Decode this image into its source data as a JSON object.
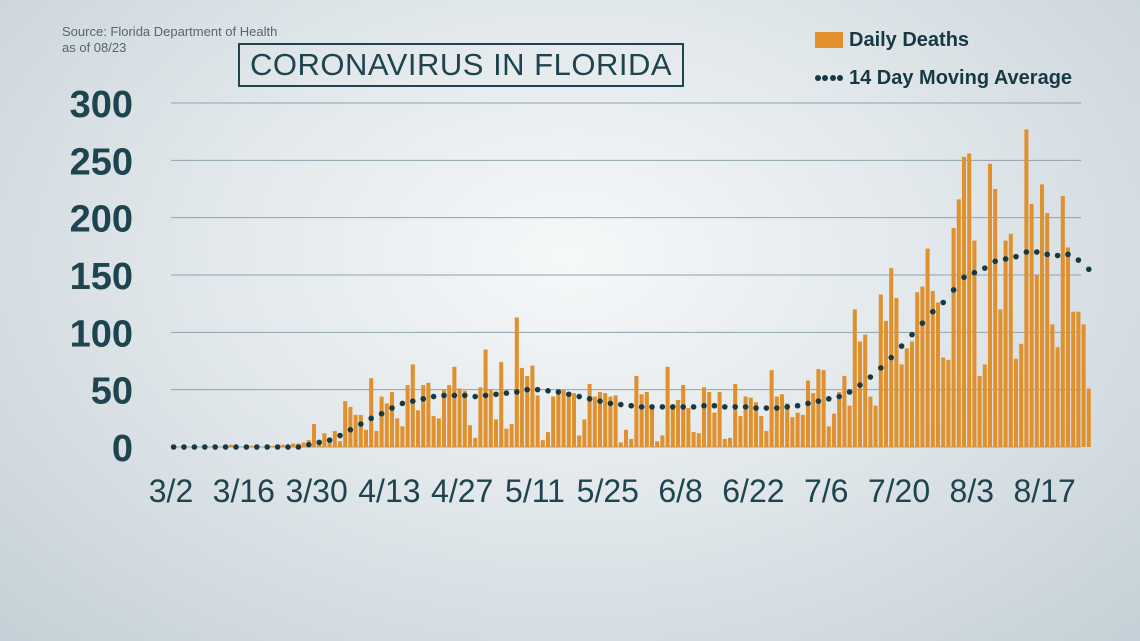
{
  "source_line1": "Source: Florida Department of Health",
  "source_line2": "as of 08/23",
  "title": "CORONAVIRUS IN FLORIDA",
  "legend": {
    "bars_label": "Daily Deaths",
    "line_label": "14 Day Moving Average"
  },
  "colors": {
    "bar": "#e0912e",
    "dots": "#163944",
    "text": "#1e4450",
    "grid": "#8fa3ad"
  },
  "chart_data": {
    "type": "bar",
    "title": "CORONAVIRUS IN FLORIDA",
    "xlabel": "",
    "ylabel": "",
    "ylim": [
      0,
      300
    ],
    "yticks": [
      0,
      50,
      100,
      150,
      200,
      250,
      300
    ],
    "grid": true,
    "legend_position": "top-right",
    "x_tick_labels": [
      "3/2",
      "3/16",
      "3/30",
      "4/13",
      "4/27",
      "5/11",
      "5/25",
      "6/8",
      "6/22",
      "7/6",
      "7/20",
      "8/3",
      "8/17"
    ],
    "x_tick_day_index": [
      0,
      14,
      28,
      42,
      56,
      70,
      84,
      98,
      112,
      126,
      140,
      154,
      168
    ],
    "series": [
      {
        "name": "Daily Deaths",
        "type": "bar",
        "start_date": "3/2",
        "values": [
          0,
          0,
          0,
          0,
          0,
          0,
          0,
          0,
          0,
          0,
          0,
          2,
          0,
          0,
          1,
          1,
          0,
          0,
          2,
          1,
          2,
          2,
          1,
          3,
          3,
          4,
          6,
          20,
          3,
          12,
          4,
          14,
          5,
          40,
          35,
          28,
          28,
          15,
          60,
          14,
          44,
          38,
          48,
          25,
          18,
          54,
          72,
          32,
          54,
          56,
          27,
          25,
          50,
          54,
          70,
          51,
          49,
          19,
          8,
          52,
          85,
          50,
          24,
          74,
          16,
          20,
          113,
          69,
          62,
          71,
          45,
          6,
          13,
          44,
          47,
          50,
          45,
          47,
          10,
          24,
          55,
          44,
          48,
          47,
          44,
          45,
          4,
          15,
          7,
          62,
          46,
          48,
          36,
          5,
          10,
          70,
          35,
          41,
          54,
          34,
          13,
          12,
          52,
          48,
          30,
          48,
          7,
          8,
          55,
          27,
          44,
          43,
          39,
          27,
          14,
          67,
          44,
          46,
          38,
          26,
          30,
          28,
          58,
          47,
          68,
          67,
          18,
          29,
          48,
          62,
          36,
          120,
          92,
          98,
          44,
          36,
          133,
          110,
          156,
          130,
          72,
          86,
          92,
          135,
          140,
          173,
          136,
          126,
          78,
          76,
          191,
          216,
          253,
          256,
          180,
          62,
          72,
          247,
          225,
          120,
          180,
          186,
          77,
          90,
          277,
          212,
          150,
          229,
          204,
          107,
          87,
          219,
          174,
          118,
          118,
          107,
          51
        ],
        "x_range_days": [
          0,
          175
        ]
      },
      {
        "name": "14 Day Moving Average",
        "type": "dotted-line",
        "start_date": "3/2",
        "values": [
          0,
          0,
          0,
          0,
          0,
          0,
          0,
          0,
          0,
          0,
          0,
          0,
          0,
          0,
          0,
          0,
          0,
          0,
          0,
          0,
          0,
          0,
          0,
          0,
          0,
          1,
          2,
          3,
          4,
          5,
          6,
          8,
          10,
          13,
          15,
          17,
          20,
          22,
          25,
          27,
          29,
          31,
          34,
          36,
          38,
          39,
          40,
          41,
          42,
          43,
          44,
          44,
          45,
          45,
          45,
          45,
          45,
          44,
          44,
          44,
          45,
          45,
          46,
          46,
          47,
          48,
          48,
          49,
          50,
          50,
          50,
          49,
          49,
          48,
          48,
          47,
          46,
          45,
          44,
          43,
          42,
          41,
          40,
          39,
          38,
          38,
          37,
          37,
          36,
          36,
          35,
          35,
          35,
          35,
          35,
          35,
          35,
          35,
          35,
          35,
          35,
          35,
          36,
          36,
          36,
          36,
          35,
          35,
          35,
          35,
          35,
          34,
          34,
          34,
          34,
          34,
          34,
          34,
          35,
          35,
          36,
          37,
          38,
          39,
          40,
          41,
          42,
          43,
          44,
          46,
          48,
          51,
          54,
          57,
          61,
          65,
          69,
          73,
          78,
          83,
          88,
          93,
          98,
          103,
          108,
          113,
          118,
          122,
          126,
          131,
          137,
          143,
          148,
          151,
          152,
          153,
          156,
          159,
          162,
          163,
          164,
          165,
          166,
          168,
          170,
          171,
          170,
          169,
          168,
          167,
          167,
          168,
          168,
          166,
          163,
          159,
          155
        ],
        "x_range_days": [
          0,
          175
        ]
      }
    ]
  }
}
